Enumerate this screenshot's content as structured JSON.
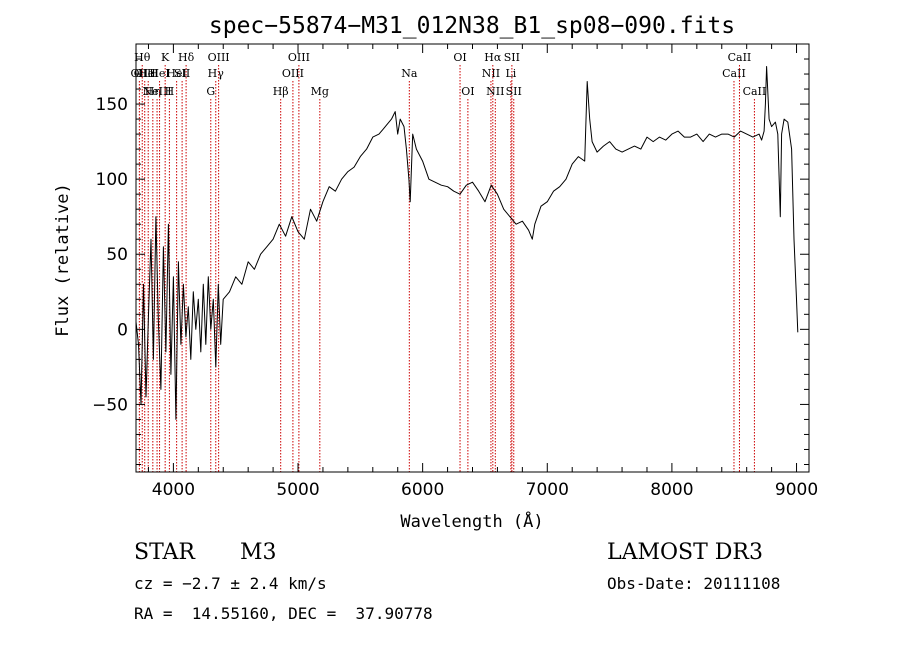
{
  "chart_data": {
    "type": "line",
    "title": "spec−55874−M31_012N38_B1_sp08−090.fits",
    "xlabel": "Wavelength (Å)",
    "ylabel": "Flux (relative)",
    "xlim": [
      3700,
      9100
    ],
    "ylim": [
      -95,
      190
    ],
    "xticks": [
      4000,
      5000,
      6000,
      7000,
      8000,
      9000
    ],
    "yticks": [
      -50,
      0,
      50,
      100,
      150
    ],
    "grid": false,
    "line_color": "#000000",
    "marker_color": "#cc0000",
    "series": [
      {
        "x": [
          3700,
          3720,
          3740,
          3760,
          3780,
          3800,
          3820,
          3840,
          3860,
          3880,
          3900,
          3920,
          3940,
          3960,
          3980,
          4000,
          4020,
          4040,
          4060,
          4080,
          4100,
          4120,
          4140,
          4160,
          4180,
          4200,
          4220,
          4240,
          4260,
          4280,
          4300,
          4320,
          4340,
          4360,
          4380,
          4400,
          4450,
          4500,
          4550,
          4600,
          4650,
          4700,
          4750,
          4800,
          4850,
          4900,
          4950,
          5000,
          5050,
          5100,
          5150,
          5200,
          5250,
          5300,
          5350,
          5400,
          5450,
          5500,
          5550,
          5600,
          5650,
          5700,
          5750,
          5780,
          5800,
          5820,
          5850,
          5870,
          5890,
          5900,
          5920,
          5950,
          6000,
          6050,
          6100,
          6150,
          6200,
          6250,
          6300,
          6350,
          6400,
          6450,
          6500,
          6550,
          6600,
          6650,
          6700,
          6750,
          6800,
          6850,
          6880,
          6900,
          6950,
          7000,
          7050,
          7100,
          7150,
          7200,
          7250,
          7300,
          7320,
          7340,
          7360,
          7400,
          7450,
          7500,
          7550,
          7600,
          7650,
          7700,
          7750,
          7800,
          7850,
          7900,
          7950,
          8000,
          8050,
          8100,
          8150,
          8200,
          8250,
          8300,
          8350,
          8400,
          8450,
          8500,
          8550,
          8600,
          8650,
          8700,
          8720,
          8740,
          8750,
          8760,
          8780,
          8800,
          8830,
          8850,
          8870,
          8880,
          8900,
          8930,
          8960,
          8980,
          9000,
          9010
        ],
        "y": [
          5,
          -10,
          -50,
          30,
          -45,
          10,
          60,
          -20,
          75,
          5,
          -40,
          55,
          -15,
          70,
          -30,
          35,
          -60,
          45,
          -10,
          30,
          -5,
          15,
          -20,
          25,
          0,
          20,
          -15,
          30,
          -10,
          35,
          0,
          20,
          -25,
          30,
          -10,
          20,
          25,
          35,
          30,
          45,
          40,
          50,
          55,
          60,
          70,
          62,
          75,
          65,
          60,
          80,
          72,
          85,
          95,
          92,
          100,
          105,
          108,
          115,
          120,
          128,
          130,
          135,
          140,
          145,
          130,
          140,
          135,
          120,
          100,
          85,
          130,
          120,
          112,
          100,
          98,
          96,
          95,
          92,
          90,
          96,
          98,
          92,
          85,
          96,
          90,
          80,
          75,
          70,
          72,
          66,
          60,
          70,
          82,
          85,
          92,
          95,
          100,
          110,
          115,
          112,
          165,
          140,
          125,
          118,
          122,
          125,
          120,
          118,
          120,
          122,
          120,
          128,
          125,
          128,
          126,
          130,
          132,
          128,
          128,
          130,
          125,
          130,
          128,
          130,
          130,
          128,
          132,
          130,
          128,
          130,
          126,
          132,
          150,
          175,
          140,
          135,
          138,
          130,
          75,
          130,
          140,
          138,
          120,
          60,
          20,
          -2
        ]
      }
    ],
    "line_markers": [
      {
        "x": 3727,
        "label": "OII",
        "row": 2
      },
      {
        "x": 3750,
        "label": "Hθ",
        "row": 1
      },
      {
        "x": 3770,
        "label": "OIII",
        "row": 2
      },
      {
        "x": 3798,
        "label": "HeI",
        "row": 2
      },
      {
        "x": 3835,
        "label": "Hη",
        "row": 3
      },
      {
        "x": 3869,
        "label": "NeIII",
        "row": 3
      },
      {
        "x": 3889,
        "label": "HeI",
        "row": 2
      },
      {
        "x": 3934,
        "label": "K",
        "row": 1
      },
      {
        "x": 3968,
        "label": "H",
        "row": 3
      },
      {
        "x": 4026,
        "label": "HeI",
        "row": 2
      },
      {
        "x": 4070,
        "label": "SII",
        "row": 2
      },
      {
        "x": 4102,
        "label": "Hδ",
        "row": 1
      },
      {
        "x": 4300,
        "label": "G",
        "row": 3
      },
      {
        "x": 4340,
        "label": "Hγ",
        "row": 2
      },
      {
        "x": 4363,
        "label": "OIII",
        "row": 1
      },
      {
        "x": 4861,
        "label": "Hβ",
        "row": 3
      },
      {
        "x": 4959,
        "label": "OIII",
        "row": 2
      },
      {
        "x": 5007,
        "label": "OIII",
        "row": 1
      },
      {
        "x": 5175,
        "label": "Mg",
        "row": 3
      },
      {
        "x": 5893,
        "label": "Na",
        "row": 2
      },
      {
        "x": 6300,
        "label": "OI",
        "row": 1
      },
      {
        "x": 6363,
        "label": "OI",
        "row": 3
      },
      {
        "x": 6548,
        "label": "NII",
        "row": 2
      },
      {
        "x": 6563,
        "label": "Hα",
        "row": 1
      },
      {
        "x": 6583,
        "label": "NII",
        "row": 3
      },
      {
        "x": 6708,
        "label": "Li",
        "row": 2
      },
      {
        "x": 6716,
        "label": "SII",
        "row": 1
      },
      {
        "x": 6731,
        "label": "SII",
        "row": 3
      },
      {
        "x": 8498,
        "label": "CaII",
        "row": 2
      },
      {
        "x": 8542,
        "label": "CaII",
        "row": 1
      },
      {
        "x": 8662,
        "label": "CaII",
        "row": 3
      }
    ]
  },
  "info": {
    "class": "STAR",
    "subclass": "M3",
    "survey": "LAMOST DR3",
    "redshift": "cz = −2.7 ± 2.4 km/s",
    "obs_date": "Obs-Date: 20111108",
    "coords": "RA =  14.55160, DEC =  37.90778"
  }
}
